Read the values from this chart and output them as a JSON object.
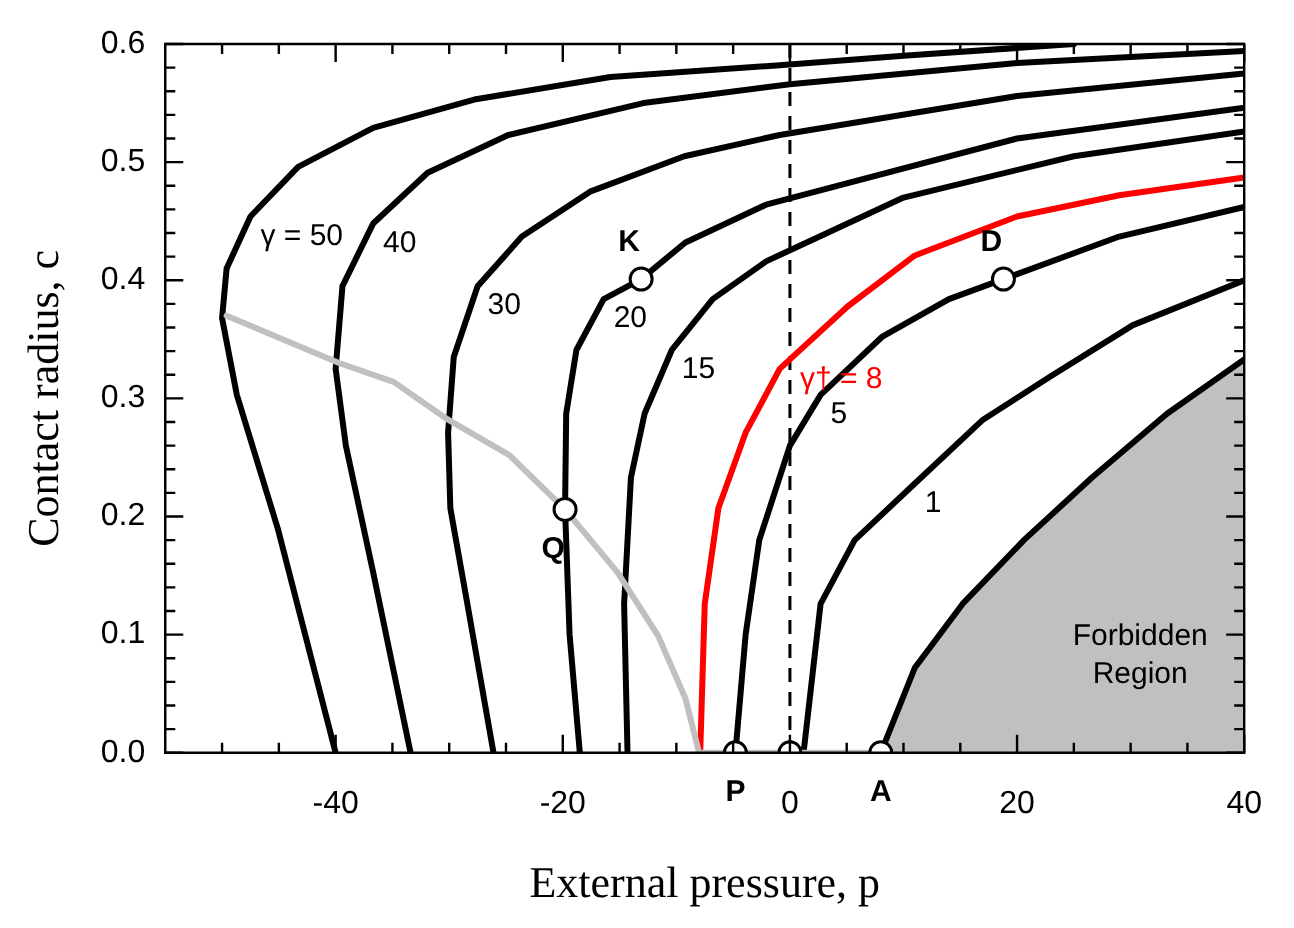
{
  "chart_data": {
    "type": "line",
    "xlabel": "External pressure, p",
    "ylabel": "Contact radius, c",
    "xlim": [
      -55,
      40
    ],
    "ylim": [
      0,
      0.6
    ],
    "xticks": [
      {
        "value": -50,
        "label": null
      },
      {
        "value": -45,
        "label": null
      },
      -40,
      {
        "value": -35,
        "label": null
      },
      {
        "value": -30,
        "label": null
      },
      {
        "value": -25,
        "label": null
      },
      -20,
      {
        "value": -15,
        "label": null
      },
      {
        "value": -10,
        "label": null
      },
      {
        "value": -5,
        "label": null
      },
      0,
      {
        "value": 5,
        "label": null
      },
      {
        "value": 10,
        "label": null
      },
      {
        "value": 15,
        "label": null
      },
      20,
      {
        "value": 25,
        "label": null
      },
      {
        "value": 30,
        "label": null
      },
      {
        "value": 35,
        "label": null
      },
      40
    ],
    "yticks": [
      {
        "value": 0,
        "label": "0.0"
      },
      {
        "value": 0.02,
        "label": null
      },
      {
        "value": 0.04,
        "label": null
      },
      {
        "value": 0.06,
        "label": null
      },
      {
        "value": 0.08,
        "label": null
      },
      0.1,
      {
        "value": 0.12,
        "label": null
      },
      {
        "value": 0.14,
        "label": null
      },
      {
        "value": 0.16,
        "label": null
      },
      {
        "value": 0.18,
        "label": null
      },
      0.2,
      {
        "value": 0.22,
        "label": null
      },
      {
        "value": 0.24,
        "label": null
      },
      {
        "value": 0.26,
        "label": null
      },
      {
        "value": 0.28,
        "label": null
      },
      0.3,
      {
        "value": 0.32,
        "label": null
      },
      {
        "value": 0.34,
        "label": null
      },
      {
        "value": 0.36,
        "label": null
      },
      {
        "value": 0.38,
        "label": null
      },
      0.4,
      {
        "value": 0.42,
        "label": null
      },
      {
        "value": 0.44,
        "label": null
      },
      {
        "value": 0.46,
        "label": null
      },
      {
        "value": 0.48,
        "label": null
      },
      0.5,
      {
        "value": 0.52,
        "label": null
      },
      {
        "value": 0.54,
        "label": null
      },
      {
        "value": 0.56,
        "label": null
      },
      {
        "value": 0.58,
        "label": null
      },
      0.6
    ],
    "grid": false,
    "legend": false,
    "marker": "none",
    "series": [
      {
        "type": "area",
        "color": "#c0c0c0",
        "x": [
          8,
          11,
          15.2,
          20.6,
          26.6,
          33.2,
          40
        ],
        "values": [
          0,
          0.072,
          0.126,
          0.18,
          0.233,
          0.287,
          0.333
        ]
      },
      {
        "color": "#c0c0c0",
        "x": [
          -49.6,
          -39.7,
          -34.9,
          -30.1,
          -24.7,
          -19.8,
          -15.2,
          -11.6,
          -9.2,
          -8,
          8
        ],
        "values": [
          0.37,
          0.33,
          0.314,
          0.282,
          0.252,
          0.206,
          0.153,
          0.099,
          0.046,
          0,
          0
        ]
      },
      {
        "name": "γ = 50",
        "color": "#000000",
        "x": [
          -40,
          -45.1,
          -48.7,
          -50,
          -49.6,
          -47.5,
          -43.3,
          -36.7,
          -27.8,
          -15.8,
          -0.9,
          10,
          25
        ],
        "values": [
          0,
          0.19,
          0.303,
          0.368,
          0.41,
          0.454,
          0.496,
          0.529,
          0.553,
          0.572,
          0.582,
          0.59,
          0.6
        ]
      },
      {
        "name": "40",
        "color": "#000000",
        "x": [
          -33.4,
          -36.7,
          -39.1,
          -40,
          -39.4,
          -36.7,
          -31.9,
          -24.8,
          -12.9,
          0,
          20,
          40
        ],
        "values": [
          0,
          0.153,
          0.26,
          0.325,
          0.395,
          0.448,
          0.491,
          0.523,
          0.55,
          0.566,
          0.584,
          0.594
        ]
      },
      {
        "name": "30",
        "color": "#000000",
        "x": [
          -26.1,
          -28.4,
          -29.9,
          -30.1,
          -29.6,
          -27.5,
          -23.6,
          -17.6,
          -9.3,
          -0.9,
          20,
          40
        ],
        "values": [
          0,
          0.126,
          0.207,
          0.271,
          0.335,
          0.395,
          0.437,
          0.475,
          0.505,
          0.523,
          0.556,
          0.575
        ]
      },
      {
        "name": "20",
        "color": "#000000",
        "x": [
          -18.5,
          -19.4,
          -19.8,
          -19.7,
          -18.8,
          -16.4,
          -13.1,
          -9.2,
          -2.1,
          20,
          40
        ],
        "values": [
          0,
          0.1,
          0.206,
          0.287,
          0.341,
          0.384,
          0.401,
          0.432,
          0.464,
          0.52,
          0.546
        ]
      },
      {
        "name": "15",
        "color": "#000000",
        "x": [
          -14.3,
          -14.6,
          -14,
          -12.8,
          -10.4,
          -6.8,
          -2.1,
          10,
          25,
          40
        ],
        "values": [
          0,
          0.126,
          0.233,
          0.287,
          0.341,
          0.384,
          0.416,
          0.47,
          0.505,
          0.526
        ]
      },
      {
        "name": "γ† = 8",
        "color": "#ff0000",
        "x": [
          -7.9,
          -7.5,
          -6.3,
          -3.9,
          -0.9,
          0,
          5.1,
          11,
          20,
          29,
          40
        ],
        "values": [
          0,
          0.126,
          0.207,
          0.271,
          0.325,
          0.333,
          0.378,
          0.421,
          0.454,
          0.472,
          0.487
        ]
      },
      {
        "name": "5",
        "color": "#000000",
        "x": [
          -4.8,
          -3.9,
          -2.7,
          0,
          2.7,
          8.1,
          14,
          18.8,
          29,
          40
        ],
        "values": [
          0,
          0.1,
          0.18,
          0.26,
          0.303,
          0.352,
          0.384,
          0.401,
          0.437,
          0.462
        ]
      },
      {
        "name": "1",
        "color": "#000000",
        "x": [
          1.2,
          2.7,
          5.7,
          11,
          17,
          23,
          30.2,
          40
        ],
        "values": [
          0,
          0.126,
          0.18,
          0.228,
          0.282,
          0.319,
          0.362,
          0.4
        ]
      },
      {
        "type": "scatter",
        "name": "P",
        "marker": "circle",
        "color": "#000000",
        "x": [
          -4.8
        ],
        "values": [
          0
        ]
      },
      {
        "type": "scatter",
        "marker": "circle",
        "color": "#000000",
        "x": [
          0
        ],
        "values": [
          0
        ]
      },
      {
        "type": "scatter",
        "name": "A",
        "marker": "circle",
        "color": "#000000",
        "x": [
          8
        ],
        "values": [
          0
        ]
      },
      {
        "type": "scatter",
        "name": "Q",
        "marker": "circle",
        "color": "#000000",
        "x": [
          -19.8
        ],
        "values": [
          0.206
        ]
      },
      {
        "type": "scatter",
        "name": "K",
        "marker": "circle",
        "color": "#000000",
        "x": [
          -13.1
        ],
        "values": [
          0.401
        ]
      },
      {
        "type": "scatter",
        "name": "D",
        "marker": "circle",
        "color": "#000000",
        "x": [
          18.8
        ],
        "values": [
          0.401
        ]
      }
    ],
    "ref_lines": [
      {
        "axis": "x",
        "value": 0,
        "line_style": "dashed",
        "color": "#000000"
      }
    ],
    "annotations": [
      "Forbidden Region"
    ]
  }
}
